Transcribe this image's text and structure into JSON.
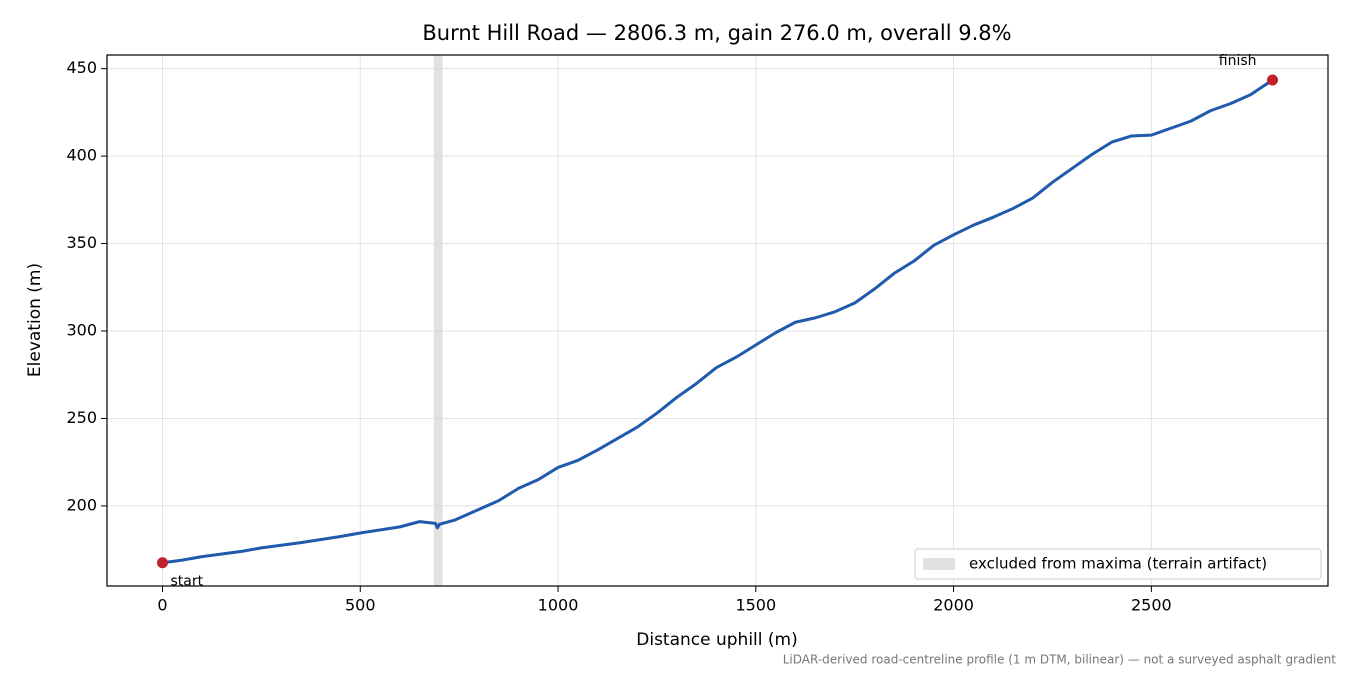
{
  "chart_data": {
    "type": "line",
    "title": "Burnt Hill Road — 2806.3 m, gain 276.0 m, overall 9.8%",
    "x_label": "Distance uphill (m)",
    "y_label": "Elevation (m)",
    "footnote": "LiDAR-derived road-centreline profile (1 m DTM, bilinear) — not a surveyed asphalt gradient",
    "x": [
      0,
      50,
      100,
      200,
      250,
      350,
      450,
      500,
      600,
      650,
      690,
      695,
      700,
      740,
      800,
      850,
      900,
      950,
      1000,
      1050,
      1100,
      1150,
      1200,
      1250,
      1300,
      1350,
      1400,
      1450,
      1500,
      1550,
      1600,
      1650,
      1700,
      1750,
      1800,
      1850,
      1900,
      1950,
      2000,
      2050,
      2100,
      2150,
      2200,
      2250,
      2300,
      2350,
      2400,
      2450,
      2500,
      2550,
      2600,
      2650,
      2700,
      2750,
      2806.3
    ],
    "series": [
      {
        "name": "elevation",
        "color": "#1f5aad",
        "values": [
          167.5,
          169,
          171,
          174,
          176,
          179,
          182.5,
          184.5,
          188,
          191,
          190,
          187.5,
          189.5,
          192,
          198,
          203,
          210,
          215,
          222,
          226,
          232,
          238.5,
          245,
          253,
          262,
          270,
          279,
          285,
          292,
          299,
          305,
          307.5,
          311,
          316,
          324,
          333,
          340,
          349,
          355,
          360.5,
          365,
          370,
          376,
          385,
          393,
          401,
          408,
          411.5,
          412,
          416,
          420,
          426,
          430,
          435,
          443.5
        ]
      }
    ],
    "endpoint_color": "#c0202a",
    "start_label": "start",
    "finish_label": "finish",
    "shaded_region": {
      "range": [
        686,
        708
      ],
      "label": "excluded from maxima (terrain artifact)",
      "color": "#d9d9d9"
    },
    "xlim": [
      -140.3,
      2946.6
    ],
    "ylim": [
      154.2,
      457.8
    ],
    "xticks": [
      0,
      500,
      1000,
      1500,
      2000,
      2500
    ],
    "yticks": [
      200,
      250,
      300,
      350,
      400,
      450
    ],
    "grid": true,
    "legend_position": "lower right"
  }
}
